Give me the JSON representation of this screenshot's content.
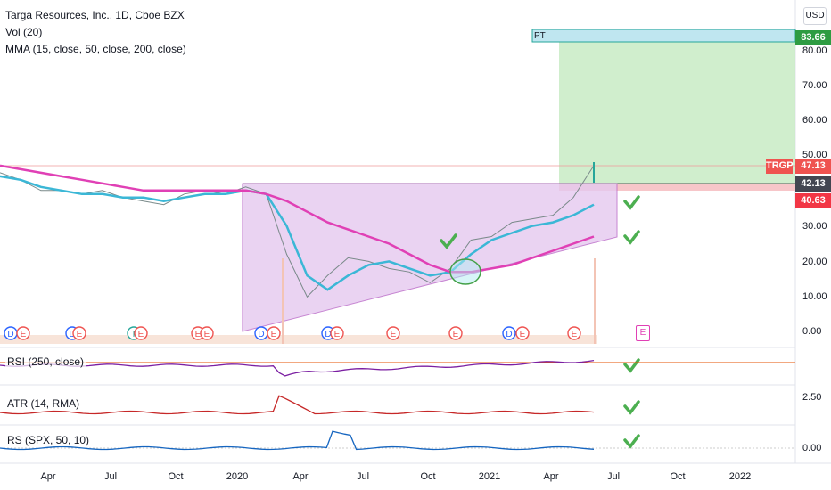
{
  "header": {
    "symbol_line": "Targa Resources, Inc., 1D, Cboe BZX",
    "vol_label": "Vol (20)",
    "mma_label": "MMA (15, close, 50, close, 200, close)"
  },
  "currency": "USD",
  "price_axis": {
    "ticks": [
      "80.00",
      "70.00",
      "60.00",
      "50.00",
      "30.00",
      "20.00",
      "10.00",
      "0.00"
    ],
    "tags": {
      "target": "83.66",
      "last": "47.13",
      "level": "42.13",
      "entry": "40.63"
    },
    "ticker": "TRGP"
  },
  "target_label": "PT",
  "earnings_markers": [
    "D",
    "E",
    "D",
    "E",
    "I",
    "E",
    "E",
    "E",
    "D",
    "E",
    "D",
    "E",
    "E",
    "E",
    "D",
    "E",
    "E",
    "D",
    "E",
    "E",
    "E"
  ],
  "future_marker": "E",
  "panes": {
    "rsi": {
      "label": "RSI (250, close)"
    },
    "atr": {
      "label": "ATR (14, RMA)",
      "tick": "2.50"
    },
    "rs": {
      "label": "RS (SPX, 50, 10)",
      "tick": "0.00"
    }
  },
  "time_axis": {
    "labels": [
      "Apr",
      "Jul",
      "Oct",
      "2020",
      "Apr",
      "Jul",
      "Oct",
      "2021",
      "Apr",
      "Jul",
      "Oct",
      "2022"
    ]
  },
  "colors": {
    "price_up": "#26a69a",
    "price_down": "#ef5350",
    "ma_fast": "#3bb7d6",
    "ma_slow": "#e040b5",
    "target_zone": "#c8ebc4",
    "pattern_fill": "#e5c9ef",
    "check": "#4caf50",
    "rsi": "#7b1fa2",
    "atr": "#c62828",
    "rs": "#1565c0"
  },
  "chart_data": {
    "type": "line",
    "title": "Targa Resources, Inc., 1D, Cboe BZX",
    "x": [
      "2019-01",
      "2019-02",
      "2019-03",
      "2019-04",
      "2019-05",
      "2019-06",
      "2019-07",
      "2019-08",
      "2019-09",
      "2019-10",
      "2019-11",
      "2019-12",
      "2020-01",
      "2020-02",
      "2020-03",
      "2020-04",
      "2020-05",
      "2020-06",
      "2020-07",
      "2020-08",
      "2020-09",
      "2020-10",
      "2020-11",
      "2020-12",
      "2021-01",
      "2021-02",
      "2021-03",
      "2021-04",
      "2021-05",
      "2021-06"
    ],
    "series": [
      {
        "values": [
          45,
          43,
          40,
          40,
          39,
          40,
          38,
          37,
          36,
          39,
          40,
          39,
          41,
          39,
          22,
          10,
          16,
          21,
          20,
          18,
          17,
          14,
          18,
          26,
          27,
          31,
          32,
          33,
          38,
          47
        ]
      },
      {
        "values": [
          44,
          43,
          41,
          40,
          39,
          39,
          38,
          38,
          37,
          38,
          39,
          39,
          40,
          39,
          30,
          16,
          12,
          16,
          19,
          20,
          18,
          16,
          17,
          22,
          26,
          28,
          30,
          31,
          33,
          36
        ]
      },
      {
        "values": [
          47,
          46,
          45,
          44,
          43,
          42,
          41,
          40,
          40,
          40,
          40,
          40,
          40,
          39,
          37,
          34,
          31,
          29,
          27,
          25,
          22,
          19,
          17,
          17,
          18,
          19,
          21,
          23,
          25,
          27
        ]
      }
    ],
    "ylim": [
      0,
      90
    ],
    "levels": {
      "target": 83.66,
      "last": 47.13,
      "level": 42.13,
      "entry": 40.63
    }
  }
}
